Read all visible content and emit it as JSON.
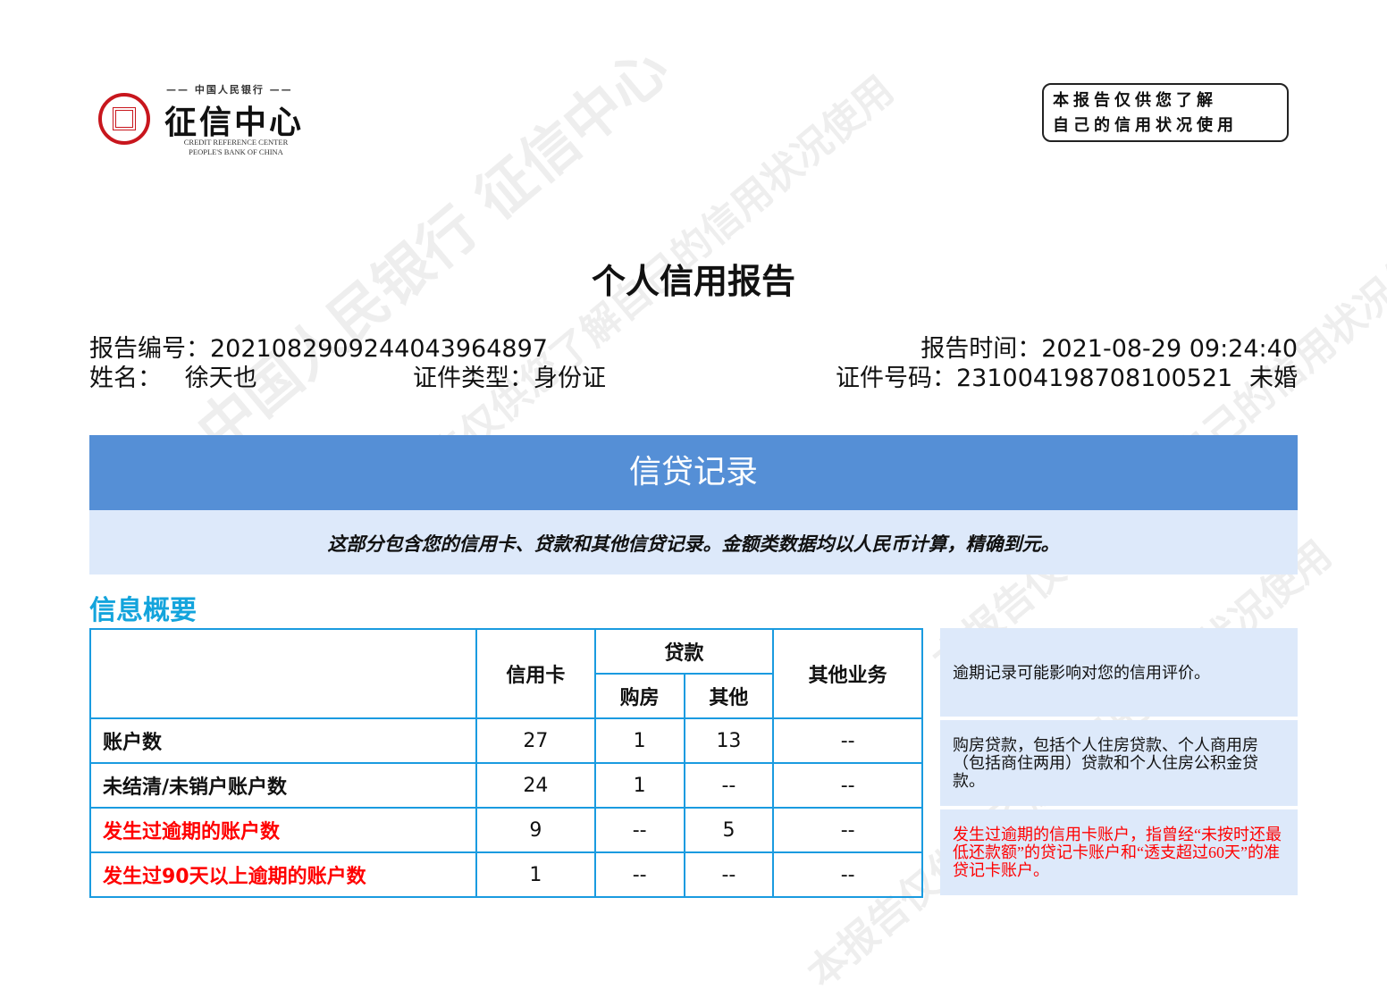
{
  "logo": {
    "top": "中国人民银行",
    "main": "征信中心",
    "en1": "CREDIT REFERENCE CENTER",
    "en2": "PEOPLE'S BANK OF CHINA",
    "color": "#c8161d"
  },
  "notice": {
    "line1": "本报告仅供您了解",
    "line2": "自己的信用状况使用"
  },
  "watermark": [
    "中国人民银行 征信中心",
    "本报告仅供您了解自己的信用状况使用",
    "征信中心"
  ],
  "title": "个人信用报告",
  "report": {
    "no_label": "报告编号：",
    "no": "2021082909244043964897",
    "time_label": "报告时间：",
    "time": "2021-08-29 09:24:40",
    "name_label": "姓名：",
    "name": "徐天也",
    "idtype_label": "证件类型：",
    "idtype": "身份证",
    "idno_label": "证件号码：",
    "idno": "231004198708100521",
    "marital": "未婚"
  },
  "section": {
    "title": "信贷记录",
    "desc": "这部分包含您的信用卡、贷款和其他信贷记录。金额类数据均以人民币计算，精确到元。",
    "accent": "#558fd6"
  },
  "summary": {
    "title": "信息概要",
    "headers": {
      "card": "信用卡",
      "loan": "贷款",
      "house": "购房",
      "other_loan": "其他",
      "other": "其他业务"
    },
    "rows": [
      {
        "label": "账户数",
        "card": "27",
        "house": "1",
        "other_loan": "13",
        "other": "--"
      },
      {
        "label": "未结清/未销户账户数",
        "card": "24",
        "house": "1",
        "other_loan": "--",
        "other": "--"
      },
      {
        "label": "发生过逾期的账户数",
        "card": "9",
        "house": "--",
        "other_loan": "5",
        "other": "--"
      },
      {
        "label": "发生过90天以上逾期的账户数",
        "card": "1",
        "house": "--",
        "other_loan": "--",
        "other": "--"
      }
    ],
    "notes": [
      "逾期记录可能影响对您的信用评价。",
      "购房贷款，包括个人住房贷款、个人商用房（包括商住两用）贷款和个人住房公积金贷款。",
      "发生过逾期的信用卡账户，指曾经“未按时还最低还款额”的贷记卡账户和“透支超过60天”的准贷记卡账户。"
    ]
  }
}
